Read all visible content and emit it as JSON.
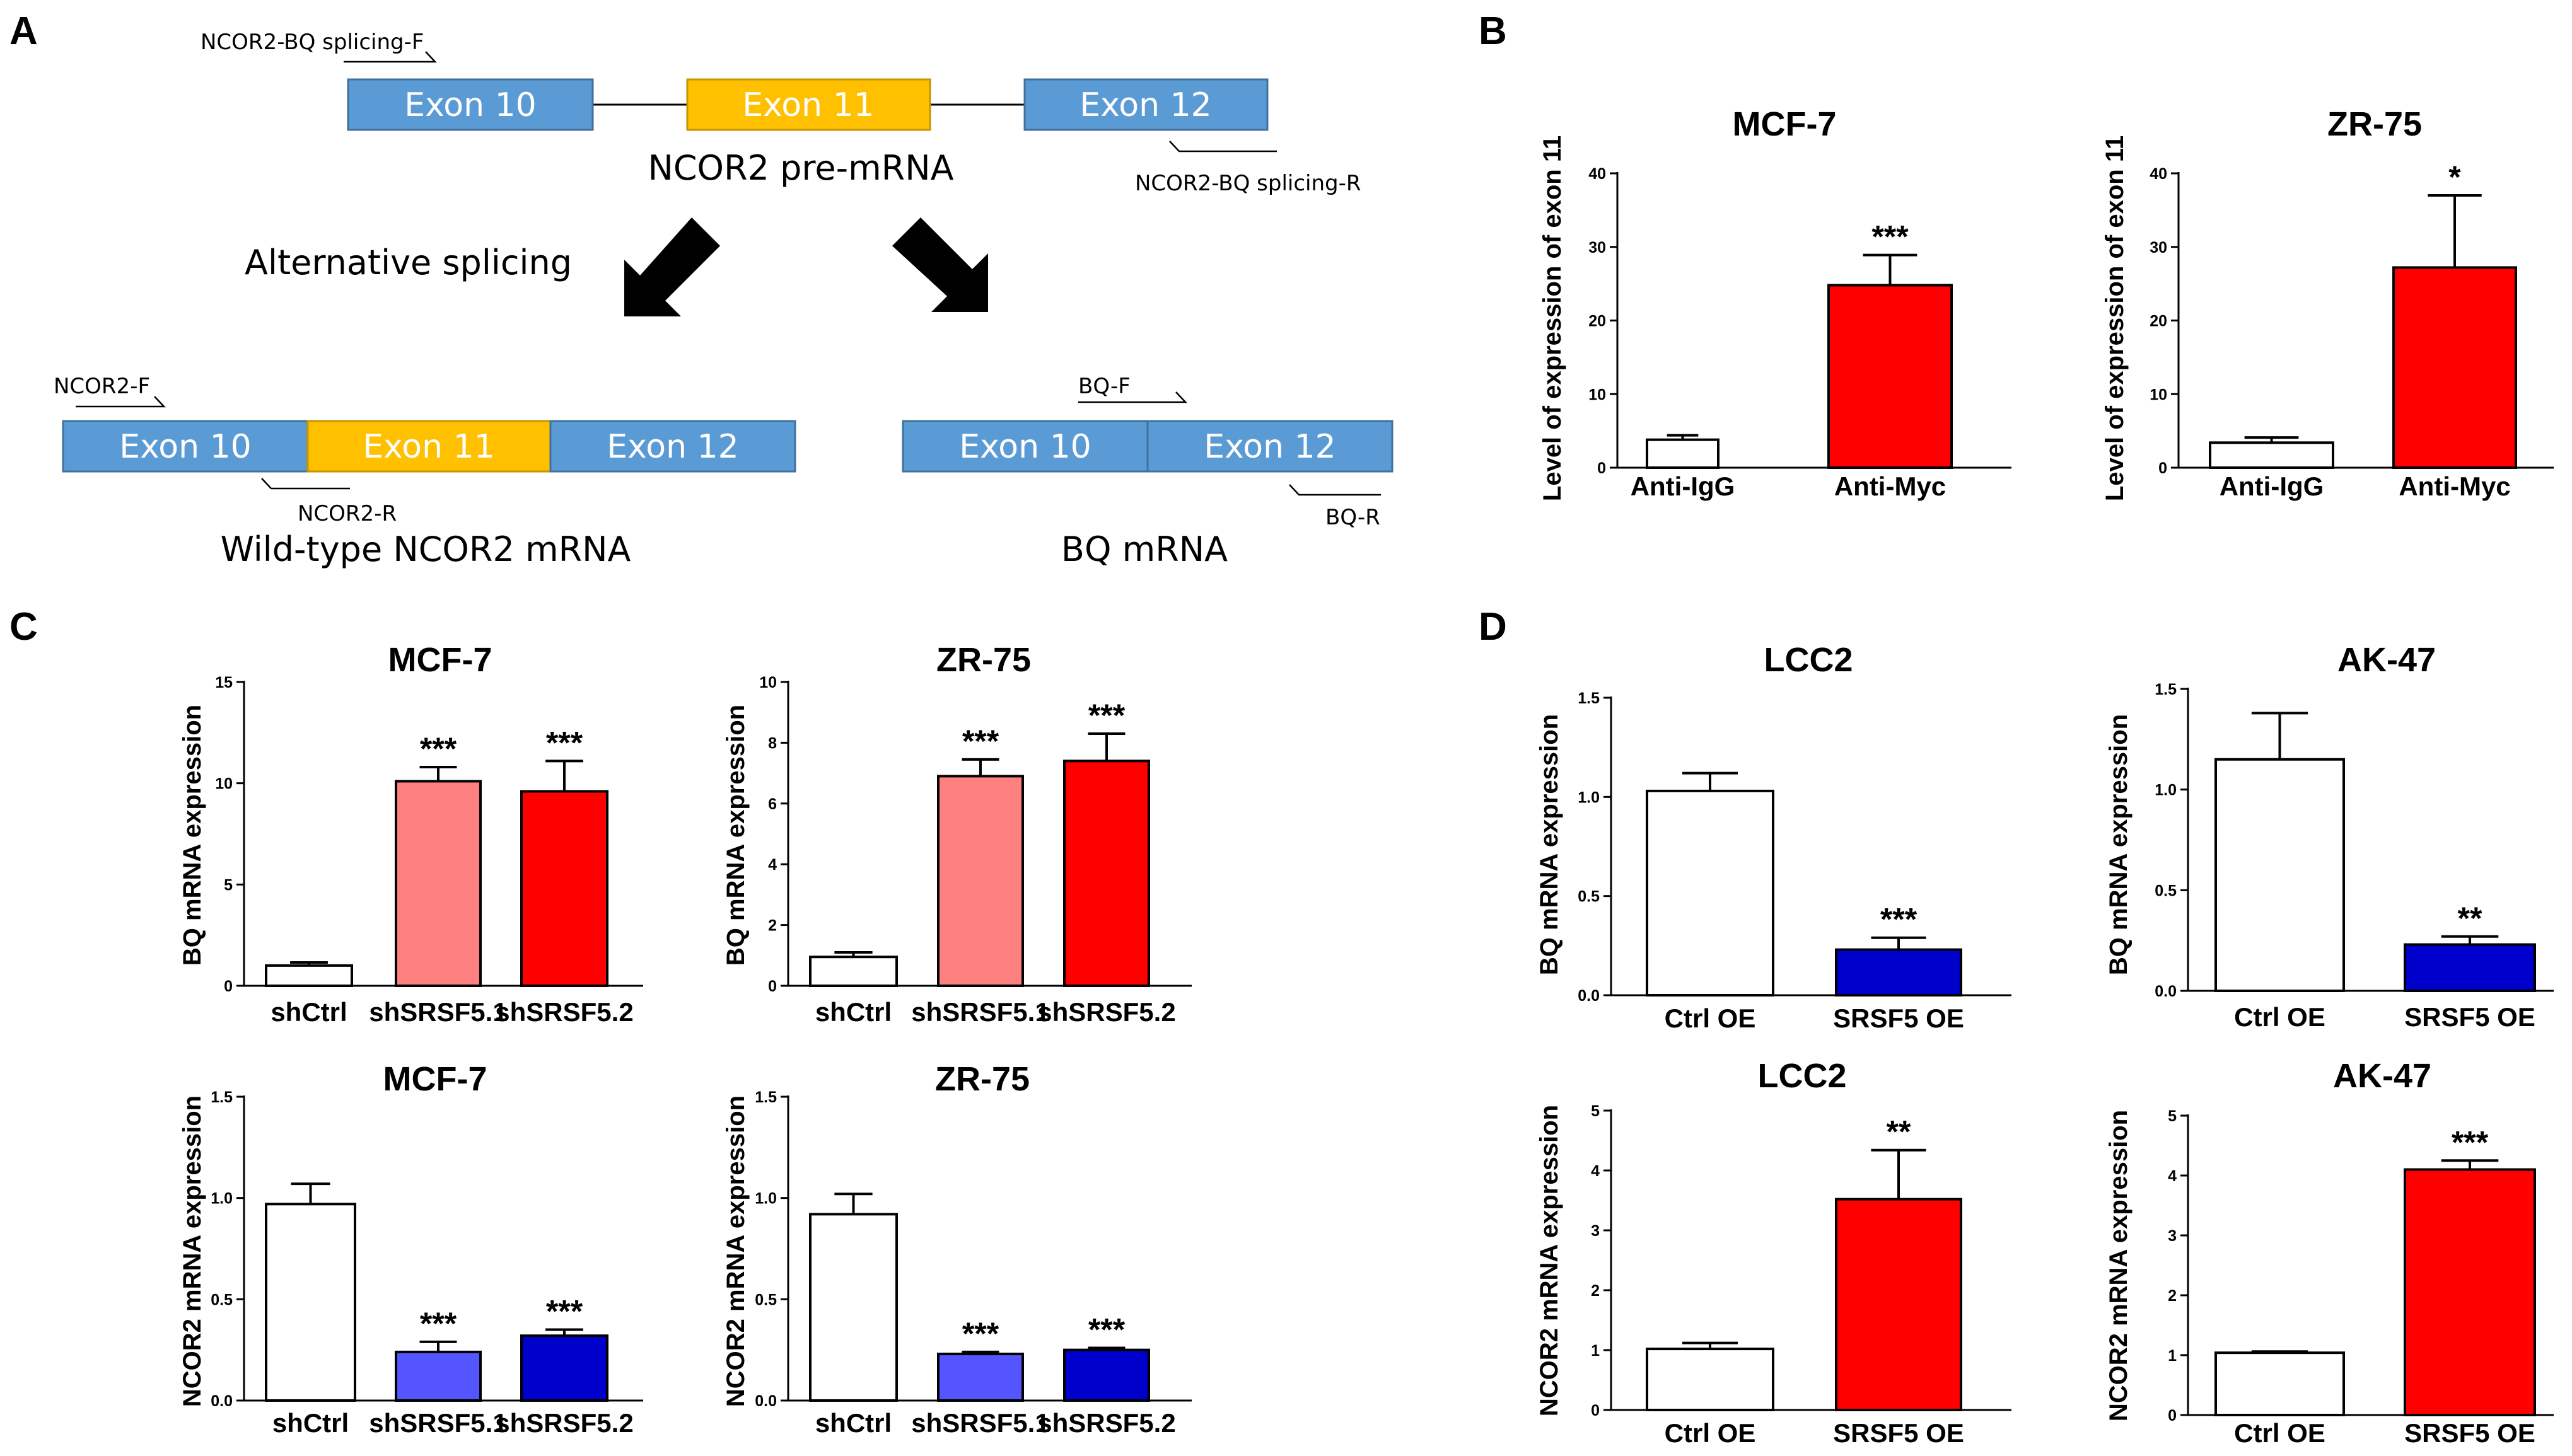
{
  "panels": {
    "A": "A",
    "B": "B",
    "C": "C",
    "D": "D"
  },
  "diagram": {
    "pre_mrna": {
      "exons": [
        "Exon 10",
        "Exon 11",
        "Exon 12"
      ],
      "label": "NCOR2 pre-mRNA",
      "primer_f": "NCOR2-BQ splicing-F",
      "primer_r": "NCOR2-BQ splicing-R"
    },
    "alt_splicing_label": "Alternative splicing",
    "wild_type": {
      "exons": [
        "Exon 10",
        "Exon 11",
        "Exon 12"
      ],
      "label": "Wild-type NCOR2 mRNA",
      "primer_f": "NCOR2-F",
      "primer_r": "NCOR2-R"
    },
    "bq": {
      "exons": [
        "Exon 10",
        "Exon 12"
      ],
      "label": "BQ mRNA",
      "primer_f": "BQ-F",
      "primer_r": "BQ-R"
    },
    "colors": {
      "exon_blue": "#5b9bd5",
      "exon_orange": "#ffc000",
      "arrow": "#000000"
    }
  },
  "chart_data": [
    {
      "id": "B1",
      "type": "bar",
      "title": "MCF-7",
      "ylabel": "Level of expression of exon 11",
      "ylim": [
        0,
        40
      ],
      "yticks": [
        "0",
        "10",
        "20",
        "30",
        "40"
      ],
      "categories": [
        "Anti-IgG",
        "Anti-Myc"
      ],
      "values": [
        3.8,
        24.8
      ],
      "errors": [
        0.6,
        4.1
      ],
      "colors": [
        "#ffffff",
        "#ff0000"
      ],
      "significance": [
        "",
        "***"
      ]
    },
    {
      "id": "B2",
      "type": "bar",
      "title": "ZR-75",
      "ylabel": "Level of expression of exon 11",
      "ylim": [
        0,
        40
      ],
      "yticks": [
        "0",
        "10",
        "20",
        "30",
        "40"
      ],
      "categories": [
        "Anti-IgG",
        "Anti-Myc"
      ],
      "values": [
        3.4,
        27.2
      ],
      "errors": [
        0.7,
        9.8
      ],
      "colors": [
        "#ffffff",
        "#ff0000"
      ],
      "significance": [
        "",
        "*"
      ]
    },
    {
      "id": "C1",
      "type": "bar",
      "title": "MCF-7",
      "ylabel": "BQ mRNA expression",
      "ylim": [
        0,
        15
      ],
      "yticks": [
        "0",
        "5",
        "10",
        "15"
      ],
      "categories": [
        "shCtrl",
        "shSRSF5.1",
        "shSRSF5.2"
      ],
      "values": [
        1.0,
        10.1,
        9.6
      ],
      "errors": [
        0.15,
        0.7,
        1.5
      ],
      "colors": [
        "#ffffff",
        "#ff8080",
        "#ff0000"
      ],
      "significance": [
        "",
        "***",
        "***"
      ]
    },
    {
      "id": "C2",
      "type": "bar",
      "title": "ZR-75",
      "ylabel": "BQ mRNA expression",
      "ylim": [
        0,
        10
      ],
      "yticks": [
        "0",
        "2",
        "4",
        "6",
        "8",
        "10"
      ],
      "categories": [
        "shCtrl",
        "shSRSF5.1",
        "shSRSF5.2"
      ],
      "values": [
        0.95,
        6.9,
        7.4
      ],
      "errors": [
        0.15,
        0.55,
        0.9
      ],
      "colors": [
        "#ffffff",
        "#ff8080",
        "#ff0000"
      ],
      "significance": [
        "",
        "***",
        "***"
      ]
    },
    {
      "id": "C3",
      "type": "bar",
      "title": "MCF-7",
      "ylabel": "NCOR2 mRNA expression",
      "ylim": [
        0,
        1.5
      ],
      "yticks": [
        "0.0",
        "0.5",
        "1.0",
        "1.5"
      ],
      "categories": [
        "shCtrl",
        "shSRSF5.1",
        "shSRSF5.2"
      ],
      "values": [
        0.97,
        0.24,
        0.32
      ],
      "errors": [
        0.1,
        0.05,
        0.03
      ],
      "colors": [
        "#ffffff",
        "#5555ff",
        "#0000cc"
      ],
      "significance": [
        "",
        "***",
        "***"
      ]
    },
    {
      "id": "C4",
      "type": "bar",
      "title": "ZR-75",
      "ylabel": "NCOR2 mRNA expression",
      "ylim": [
        0,
        1.5
      ],
      "yticks": [
        "0.0",
        "0.5",
        "1.0",
        "1.5"
      ],
      "categories": [
        "shCtrl",
        "shSRSF5.1",
        "shSRSF5.2"
      ],
      "values": [
        0.92,
        0.23,
        0.25
      ],
      "errors": [
        0.1,
        0.01,
        0.01
      ],
      "colors": [
        "#ffffff",
        "#5555ff",
        "#0000cc"
      ],
      "significance": [
        "",
        "***",
        "***"
      ]
    },
    {
      "id": "D1",
      "type": "bar",
      "title": "LCC2",
      "ylabel": "BQ mRNA expression",
      "ylim": [
        0,
        1.5
      ],
      "yticks": [
        "0.0",
        "0.5",
        "1.0",
        "1.5"
      ],
      "categories": [
        "Ctrl OE",
        "SRSF5 OE"
      ],
      "values": [
        1.03,
        0.23
      ],
      "errors": [
        0.09,
        0.06
      ],
      "colors": [
        "#ffffff",
        "#0000cc"
      ],
      "significance": [
        "",
        "***"
      ]
    },
    {
      "id": "D2",
      "type": "bar",
      "title": "AK-47",
      "ylabel": "BQ mRNA expression",
      "ylim": [
        0,
        1.5
      ],
      "yticks": [
        "0.0",
        "0.5",
        "1.0",
        "1.5"
      ],
      "categories": [
        "Ctrl OE",
        "SRSF5 OE"
      ],
      "values": [
        1.15,
        0.23
      ],
      "errors": [
        0.23,
        0.04
      ],
      "colors": [
        "#ffffff",
        "#0000cc"
      ],
      "significance": [
        "",
        "**"
      ]
    },
    {
      "id": "D3",
      "type": "bar",
      "title": "LCC2",
      "ylabel": "NCOR2 mRNA expression",
      "ylim": [
        0,
        5
      ],
      "yticks": [
        "0",
        "1",
        "2",
        "3",
        "4",
        "5"
      ],
      "categories": [
        "Ctrl OE",
        "SRSF5 OE"
      ],
      "values": [
        1.02,
        3.52
      ],
      "errors": [
        0.1,
        0.82
      ],
      "colors": [
        "#ffffff",
        "#ff0000"
      ],
      "significance": [
        "",
        "**"
      ]
    },
    {
      "id": "D4",
      "type": "bar",
      "title": "AK-47",
      "ylabel": "NCOR2 mRNA expression",
      "ylim": [
        0,
        5
      ],
      "yticks": [
        "0",
        "1",
        "2",
        "3",
        "4",
        "5"
      ],
      "categories": [
        "Ctrl OE",
        "SRSF5 OE"
      ],
      "values": [
        1.04,
        4.1
      ],
      "errors": [
        0.02,
        0.15
      ],
      "colors": [
        "#ffffff",
        "#ff0000"
      ],
      "significance": [
        "",
        "***"
      ]
    }
  ]
}
